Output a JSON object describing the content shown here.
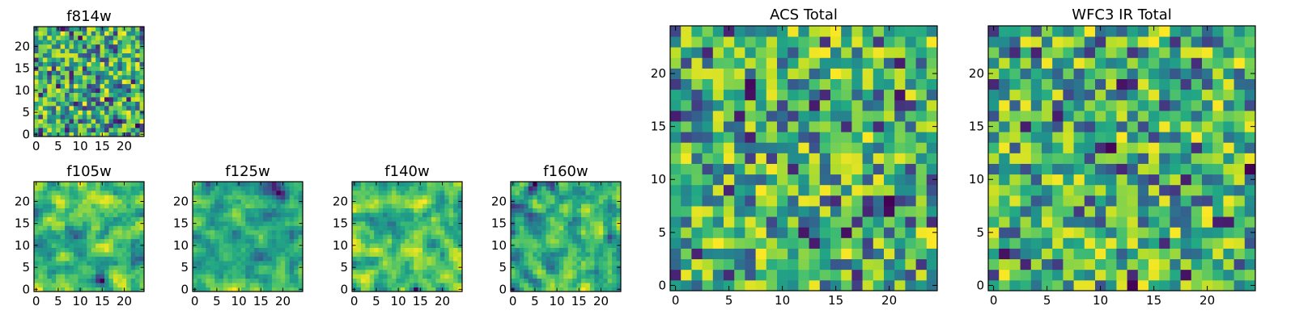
{
  "chart_data": [
    {
      "type": "heatmap",
      "title": "f814w",
      "nx": 25,
      "ny": 25,
      "xlim": [
        -0.5,
        24.5
      ],
      "ylim": [
        -0.5,
        24.5
      ],
      "xticks": [
        0,
        5,
        10,
        15,
        20
      ],
      "yticks": [
        0,
        5,
        10,
        15,
        20
      ],
      "tick_labels": [
        "0",
        "5",
        "10",
        "15",
        "20"
      ],
      "colormap": "viridis",
      "texture": "pixel-noise",
      "seed": 814
    },
    {
      "type": "heatmap",
      "title": "f105w",
      "nx": 25,
      "ny": 25,
      "xlim": [
        -0.5,
        24.5
      ],
      "ylim": [
        -0.5,
        24.5
      ],
      "xticks": [
        0,
        5,
        10,
        15,
        20
      ],
      "yticks": [
        0,
        5,
        10,
        15,
        20
      ],
      "tick_labels": [
        "0",
        "5",
        "10",
        "15",
        "20"
      ],
      "colormap": "viridis",
      "texture": "smoothed-noise",
      "seed": 105
    },
    {
      "type": "heatmap",
      "title": "f125w",
      "nx": 25,
      "ny": 25,
      "xlim": [
        -0.5,
        24.5
      ],
      "ylim": [
        -0.5,
        24.5
      ],
      "xticks": [
        0,
        5,
        10,
        15,
        20
      ],
      "yticks": [
        0,
        5,
        10,
        15,
        20
      ],
      "tick_labels": [
        "0",
        "5",
        "10",
        "15",
        "20"
      ],
      "colormap": "viridis",
      "texture": "smoothed-noise",
      "seed": 125
    },
    {
      "type": "heatmap",
      "title": "f140w",
      "nx": 25,
      "ny": 25,
      "xlim": [
        -0.5,
        24.5
      ],
      "ylim": [
        -0.5,
        24.5
      ],
      "xticks": [
        0,
        5,
        10,
        15,
        20
      ],
      "yticks": [
        0,
        5,
        10,
        15,
        20
      ],
      "tick_labels": [
        "0",
        "5",
        "10",
        "15",
        "20"
      ],
      "colormap": "viridis",
      "texture": "smoothed-noise",
      "seed": 140
    },
    {
      "type": "heatmap",
      "title": "f160w",
      "nx": 25,
      "ny": 25,
      "xlim": [
        -0.5,
        24.5
      ],
      "ylim": [
        -0.5,
        24.5
      ],
      "xticks": [
        0,
        5,
        10,
        15,
        20
      ],
      "yticks": [
        0,
        5,
        10,
        15,
        20
      ],
      "tick_labels": [
        "0",
        "5",
        "10",
        "15",
        "20"
      ],
      "colormap": "viridis",
      "texture": "smoothed-noise",
      "seed": 160
    },
    {
      "type": "heatmap",
      "title": "ACS Total",
      "nx": 25,
      "ny": 25,
      "xlim": [
        -0.5,
        24.5
      ],
      "ylim": [
        -0.5,
        24.5
      ],
      "xticks": [
        0,
        5,
        10,
        15,
        20
      ],
      "yticks": [
        0,
        5,
        10,
        15,
        20
      ],
      "tick_labels": [
        "0",
        "5",
        "10",
        "15",
        "20"
      ],
      "colormap": "viridis",
      "texture": "pixel-noise",
      "seed": 2001
    },
    {
      "type": "heatmap",
      "title": "WFC3 IR Total",
      "nx": 25,
      "ny": 25,
      "xlim": [
        -0.5,
        24.5
      ],
      "ylim": [
        -0.5,
        24.5
      ],
      "xticks": [
        0,
        5,
        10,
        15,
        20
      ],
      "yticks": [
        0,
        5,
        10,
        15,
        20
      ],
      "tick_labels": [
        "0",
        "5",
        "10",
        "15",
        "20"
      ],
      "colormap": "viridis",
      "texture": "pixel-noise",
      "seed": 3001
    }
  ]
}
